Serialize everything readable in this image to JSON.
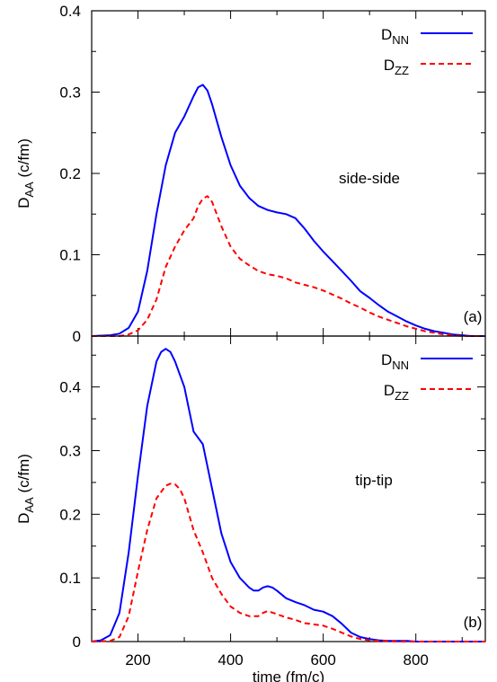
{
  "chart_data": [
    {
      "type": "line",
      "panel_label": "(a)",
      "annotation": "side-side",
      "ylabel": {
        "main": "D",
        "sub": "AA",
        "unit": " (c/fm)"
      },
      "xlim": [
        100,
        950
      ],
      "ylim": [
        0,
        0.4
      ],
      "yticks": [
        0,
        0.1,
        0.2,
        0.3,
        0.4
      ],
      "ytick_labels": [
        "0",
        "0.1",
        "0.2",
        "0.3",
        "0.4"
      ],
      "legend_position": "top-right",
      "series": [
        {
          "name": "DNN",
          "legend_main": "D",
          "legend_sub": "NN",
          "color": "#0000ff",
          "dash": "solid",
          "x": [
            100,
            140,
            160,
            180,
            200,
            220,
            240,
            260,
            280,
            300,
            320,
            330,
            340,
            350,
            360,
            380,
            400,
            420,
            440,
            460,
            480,
            500,
            520,
            540,
            560,
            580,
            600,
            620,
            640,
            660,
            680,
            700,
            720,
            740,
            760,
            780,
            800,
            820,
            840,
            860,
            880,
            900,
            920,
            950
          ],
          "y": [
            0,
            0.001,
            0.003,
            0.01,
            0.03,
            0.08,
            0.15,
            0.21,
            0.25,
            0.27,
            0.295,
            0.306,
            0.309,
            0.302,
            0.285,
            0.245,
            0.21,
            0.185,
            0.17,
            0.16,
            0.155,
            0.152,
            0.15,
            0.145,
            0.132,
            0.117,
            0.104,
            0.092,
            0.08,
            0.068,
            0.055,
            0.047,
            0.038,
            0.03,
            0.024,
            0.018,
            0.013,
            0.009,
            0.006,
            0.004,
            0.002,
            0.001,
            0,
            0
          ]
        },
        {
          "name": "DZZ",
          "legend_main": "D",
          "legend_sub": "ZZ",
          "color": "#ff0000",
          "dash": "dashed",
          "x": [
            100,
            160,
            180,
            200,
            220,
            240,
            260,
            280,
            300,
            320,
            330,
            340,
            350,
            360,
            380,
            400,
            420,
            440,
            460,
            480,
            500,
            520,
            540,
            560,
            580,
            600,
            620,
            640,
            660,
            680,
            700,
            720,
            740,
            760,
            780,
            800,
            820,
            840,
            860,
            880,
            900,
            950
          ],
          "y": [
            0,
            0,
            0.002,
            0.007,
            0.02,
            0.045,
            0.085,
            0.11,
            0.13,
            0.145,
            0.16,
            0.169,
            0.172,
            0.165,
            0.135,
            0.11,
            0.095,
            0.087,
            0.08,
            0.076,
            0.074,
            0.071,
            0.066,
            0.063,
            0.06,
            0.056,
            0.051,
            0.046,
            0.04,
            0.035,
            0.029,
            0.024,
            0.02,
            0.016,
            0.012,
            0.009,
            0.006,
            0.004,
            0.002,
            0.001,
            0,
            0
          ]
        }
      ]
    },
    {
      "type": "line",
      "panel_label": "(b)",
      "annotation": "tip-tip",
      "ylabel": {
        "main": "D",
        "sub": "AA",
        "unit": " (c/fm)"
      },
      "xlabel": "time (fm/c)",
      "xlim": [
        100,
        950
      ],
      "ylim": [
        0,
        0.48
      ],
      "xticks": [
        200,
        400,
        600,
        800
      ],
      "xtick_labels": [
        "200",
        "400",
        "600",
        "800"
      ],
      "yticks": [
        0,
        0.1,
        0.2,
        0.3,
        0.4
      ],
      "ytick_labels": [
        "0",
        "0.1",
        "0.2",
        "0.3",
        "0.4"
      ],
      "legend_position": "top-right",
      "series": [
        {
          "name": "DNN",
          "legend_main": "D",
          "legend_sub": "NN",
          "color": "#0000ff",
          "dash": "solid",
          "x": [
            100,
            120,
            140,
            160,
            180,
            200,
            220,
            240,
            250,
            260,
            270,
            280,
            300,
            320,
            340,
            360,
            380,
            400,
            420,
            440,
            450,
            460,
            470,
            480,
            490,
            500,
            520,
            540,
            560,
            580,
            600,
            620,
            640,
            660,
            680,
            700,
            720,
            740,
            760,
            780,
            800,
            820,
            840,
            860,
            900,
            950
          ],
          "y": [
            0,
            0.002,
            0.01,
            0.045,
            0.14,
            0.26,
            0.37,
            0.44,
            0.455,
            0.46,
            0.455,
            0.44,
            0.4,
            0.33,
            0.31,
            0.24,
            0.17,
            0.125,
            0.1,
            0.085,
            0.08,
            0.08,
            0.085,
            0.087,
            0.085,
            0.08,
            0.068,
            0.062,
            0.057,
            0.05,
            0.047,
            0.04,
            0.028,
            0.014,
            0.007,
            0.004,
            0.002,
            0.001,
            0.001,
            0.001,
            0,
            0,
            0,
            0,
            0,
            0
          ]
        },
        {
          "name": "DZZ",
          "legend_main": "D",
          "legend_sub": "ZZ",
          "color": "#ff0000",
          "dash": "dashed",
          "x": [
            100,
            140,
            160,
            180,
            200,
            220,
            240,
            260,
            270,
            280,
            290,
            300,
            320,
            340,
            360,
            380,
            400,
            420,
            440,
            460,
            470,
            480,
            500,
            520,
            540,
            560,
            580,
            600,
            620,
            640,
            660,
            680,
            700,
            720,
            740,
            760,
            800,
            850,
            900,
            950
          ],
          "y": [
            0,
            0.001,
            0.007,
            0.04,
            0.11,
            0.175,
            0.225,
            0.245,
            0.248,
            0.247,
            0.24,
            0.225,
            0.175,
            0.14,
            0.1,
            0.075,
            0.055,
            0.045,
            0.04,
            0.04,
            0.045,
            0.048,
            0.043,
            0.038,
            0.034,
            0.029,
            0.027,
            0.025,
            0.02,
            0.014,
            0.008,
            0.004,
            0.002,
            0.001,
            0.001,
            0,
            0,
            0,
            0,
            0
          ]
        }
      ]
    }
  ]
}
